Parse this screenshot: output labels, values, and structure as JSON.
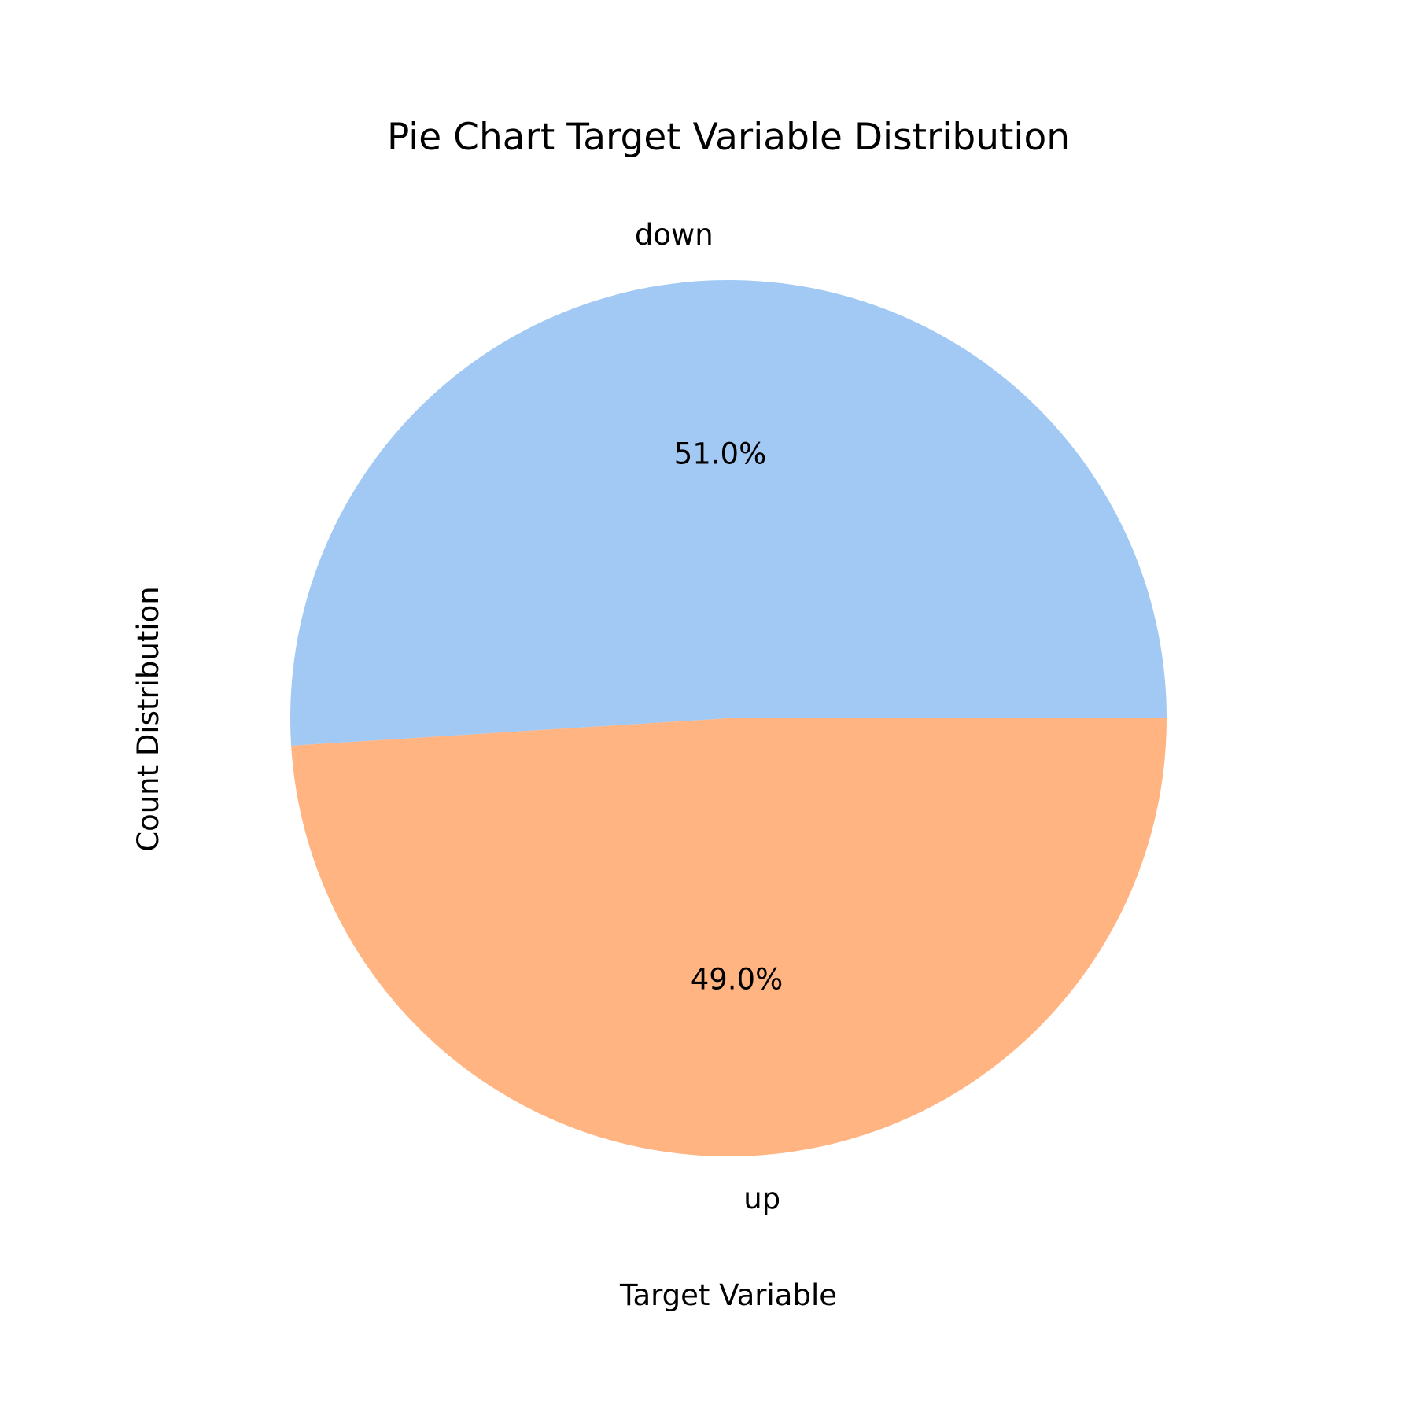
{
  "chart_data": {
    "type": "pie",
    "title": "Pie Chart Target Variable Distribution",
    "xlabel": "Target Variable",
    "ylabel": "Count Distribution",
    "slices": [
      {
        "label": "down",
        "percent": 51.0,
        "percent_label": "51.0%",
        "color": "#a1c9f4"
      },
      {
        "label": "up",
        "percent": 49.0,
        "percent_label": "49.0%",
        "color": "#ffb482"
      }
    ],
    "start_angle_deg": 0,
    "direction": "counterclockwise",
    "legend": "none",
    "grid": false
  }
}
